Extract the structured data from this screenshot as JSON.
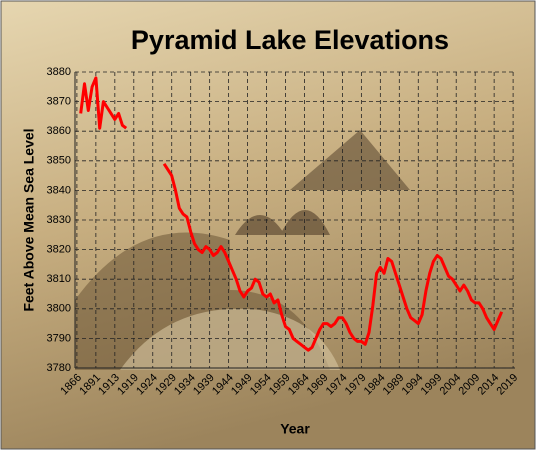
{
  "chart_data": {
    "type": "line",
    "title": "Pyramid Lake Elevations",
    "x_label": "Year",
    "y_label": "Feet Above Mean Sea Level",
    "color": "#ff0000",
    "categories": [
      "1866",
      null,
      null,
      null,
      null,
      "1891",
      null,
      null,
      null,
      null,
      "1913",
      null,
      null,
      null,
      null,
      "1919",
      null,
      null,
      null,
      null,
      "1924",
      null,
      null,
      null,
      null,
      "1929",
      null,
      null,
      null,
      null,
      "1934",
      null,
      null,
      null,
      null,
      "1939",
      null,
      null,
      null,
      null,
      "1944",
      null,
      null,
      null,
      null,
      "1949",
      null,
      null,
      null,
      null,
      "1954",
      null,
      null,
      null,
      null,
      "1959",
      null,
      null,
      null,
      null,
      "1964",
      null,
      null,
      null,
      null,
      "1969",
      null,
      null,
      null,
      null,
      "1974",
      null,
      null,
      null,
      null,
      "1979",
      null,
      null,
      null,
      null,
      "1984",
      null,
      null,
      null,
      null,
      "1989",
      null,
      null,
      null,
      null,
      "1994",
      null,
      null,
      null,
      null,
      "1999",
      null,
      null,
      null,
      null,
      "2004",
      null,
      null,
      null,
      null,
      "2009",
      null,
      null,
      null,
      null,
      "2014",
      null,
      null,
      null,
      null,
      "2019"
    ],
    "values": [
      null,
      3866,
      3876,
      3867,
      3875,
      3878,
      3861,
      3870,
      3868,
      3866,
      3864,
      3866,
      3862,
      3861,
      null,
      null,
      null,
      null,
      null,
      null,
      null,
      null,
      null,
      3849,
      3847,
      3845,
      3840,
      3834,
      3832,
      3831,
      3826,
      3822,
      3820,
      3819,
      3821,
      3820,
      3818,
      3819,
      3821,
      3819,
      3816,
      3813,
      3810,
      3806,
      3804,
      3806,
      3807,
      3810,
      3809,
      3805,
      3804,
      3805,
      3802,
      3803,
      3798,
      3794,
      3793,
      3790,
      3789,
      3788,
      3787,
      3786,
      3787,
      3790,
      3793,
      3795,
      3795,
      3794,
      3795,
      3797,
      3797,
      3795,
      3792,
      3790,
      3789,
      3789,
      3788,
      3792,
      3801,
      3812,
      3814,
      3812,
      3817,
      3816,
      3812,
      3808,
      3804,
      3800,
      3797,
      3796,
      3795,
      3798,
      3806,
      3812,
      3816,
      3818,
      3817,
      3814,
      3811,
      3810,
      3808,
      3806,
      3808,
      3806,
      3803,
      3802,
      3802,
      3800,
      3797,
      3795,
      3793,
      3796,
      3799,
      null,
      null,
      null
    ],
    "ylim": [
      3780,
      3880
    ],
    "yticks": [
      3780,
      3790,
      3800,
      3810,
      3820,
      3830,
      3840,
      3850,
      3860,
      3870,
      3880
    ],
    "grid": true
  }
}
